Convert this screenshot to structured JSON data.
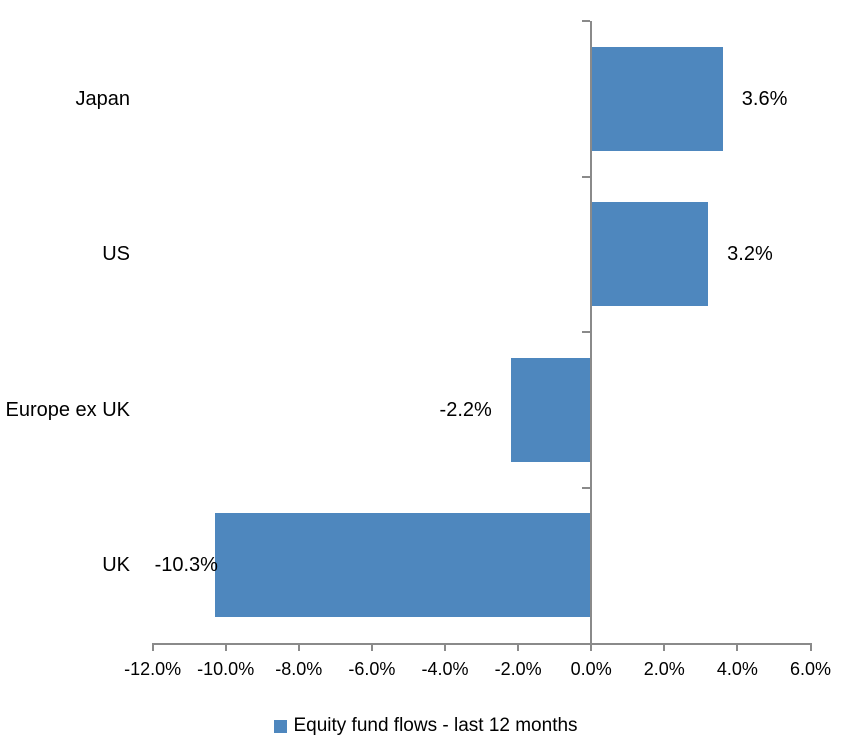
{
  "chart_data": {
    "type": "bar",
    "orientation": "horizontal",
    "title": "",
    "categories": [
      "Japan",
      "US",
      "Europe ex UK",
      "UK"
    ],
    "values": [
      3.6,
      3.2,
      -2.2,
      -10.3
    ],
    "value_labels": [
      "3.6%",
      "3.2%",
      "-2.2%",
      "-10.3%"
    ],
    "legend": "Equity fund flows - last 12 months",
    "legend_position": "bottom",
    "xlim": [
      -12,
      6
    ],
    "x_tick_step": 2,
    "x_tick_labels": [
      "-12.0%",
      "-10.0%",
      "-8.0%",
      "-6.0%",
      "-4.0%",
      "-2.0%",
      "0.0%",
      "2.0%",
      "4.0%",
      "6.0%"
    ],
    "grid": false,
    "bar_color": "#4E87BE",
    "axis_color": "#8A8A8A",
    "text_color": "#000000"
  }
}
